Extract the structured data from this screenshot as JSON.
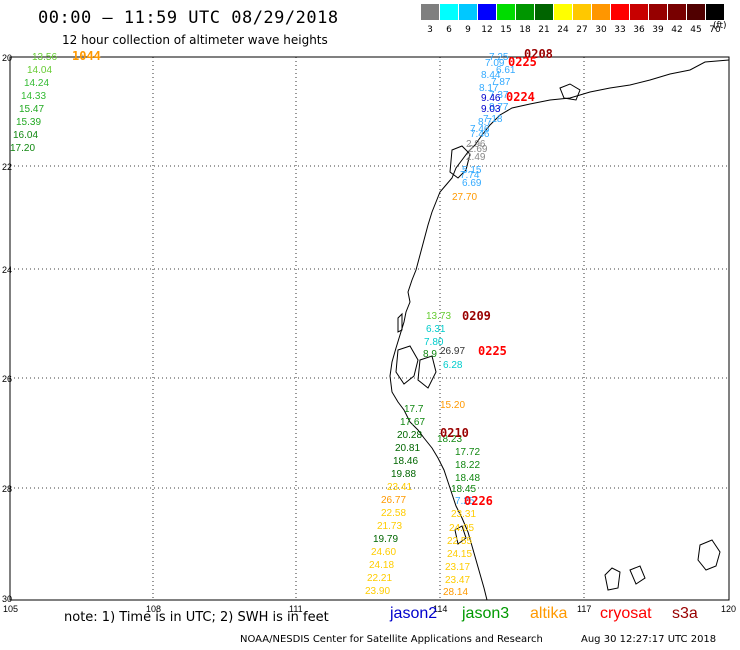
{
  "header": {
    "title": "00:00 — 11:59 UTC 08/29/2018",
    "subtitle": "12 hour collection of altimeter wave heights"
  },
  "scale": {
    "colors": [
      "#7f7f7f",
      "#00ffff",
      "#00c8ff",
      "#0000ff",
      "#00dc00",
      "#009600",
      "#006400",
      "#ffff00",
      "#ffc800",
      "#ff9600",
      "#ff0000",
      "#c80000",
      "#960000",
      "#780000",
      "#500000",
      "#000000"
    ],
    "labels": [
      "3",
      "6",
      "9",
      "12",
      "15",
      "18",
      "21",
      "24",
      "27",
      "30",
      "33",
      "36",
      "39",
      "42",
      "45",
      "70"
    ],
    "unit": "(ft)"
  },
  "axes": {
    "lon_ticks": [
      "105",
      "108",
      "111",
      "114",
      "117",
      "120"
    ],
    "lat_ticks": [
      "20",
      "22",
      "24",
      "26",
      "28",
      "30"
    ]
  },
  "footer": {
    "note": "note: 1) Time is in UTC; 2) SWH is in feet",
    "satellites": [
      {
        "name": "jason2",
        "color": "#0000cc"
      },
      {
        "name": "jason3",
        "color": "#009900"
      },
      {
        "name": "altika",
        "color": "#ff9900"
      },
      {
        "name": "cryosat",
        "color": "#ff0000"
      },
      {
        "name": "s3a",
        "color": "#990000"
      }
    ],
    "credit": "NOAA/NESDIS Center for Satellite Applications and Research",
    "timestamp": "Aug 30 12:27:17 UTC 2018"
  },
  "tracks": {
    "time_labels": [
      {
        "text": "1044",
        "color": "#ff9900"
      },
      {
        "text": "0208",
        "color": "#990000"
      },
      {
        "text": "0225",
        "color": "#ff0000"
      },
      {
        "text": "0224",
        "color": "#ff0000"
      },
      {
        "text": "0209",
        "color": "#990000"
      },
      {
        "text": "0225",
        "color": "#ff0000"
      },
      {
        "text": "0210",
        "color": "#990000"
      },
      {
        "text": "0226",
        "color": "#ff0000"
      }
    ],
    "values": [
      {
        "text": "13.56",
        "color": "#66cc33"
      },
      {
        "text": "14.04",
        "color": "#66cc33"
      },
      {
        "text": "14.24",
        "color": "#33bb33"
      },
      {
        "text": "14.33",
        "color": "#33bb33"
      },
      {
        "text": "15.47",
        "color": "#22aa22"
      },
      {
        "text": "15.39",
        "color": "#22aa22"
      },
      {
        "text": "16.04",
        "color": "#118811"
      },
      {
        "text": "17.20",
        "color": "#118811"
      },
      {
        "text": "7.25",
        "color": "#33aaff"
      },
      {
        "text": "7.09",
        "color": "#33aaff"
      },
      {
        "text": "6.61",
        "color": "#33aaff"
      },
      {
        "text": "8.44",
        "color": "#33aaff"
      },
      {
        "text": "7.87",
        "color": "#33aaff"
      },
      {
        "text": "8.17",
        "color": "#33aaff"
      },
      {
        "text": "7.37",
        "color": "#33aaff"
      },
      {
        "text": "9.46",
        "color": "#0000cc"
      },
      {
        "text": "8.77",
        "color": "#33aaff"
      },
      {
        "text": "9.03",
        "color": "#0000cc"
      },
      {
        "text": "7.18",
        "color": "#33aaff"
      },
      {
        "text": "8.7",
        "color": "#33aaff"
      },
      {
        "text": "7.46",
        "color": "#33aaff"
      },
      {
        "text": "7.46",
        "color": "#33aaff"
      },
      {
        "text": "2.96",
        "color": "#888888"
      },
      {
        "text": "2.69",
        "color": "#888888"
      },
      {
        "text": "2.49",
        "color": "#888888"
      },
      {
        "text": "5.15",
        "color": "#33aaff"
      },
      {
        "text": "7.74",
        "color": "#33aaff"
      },
      {
        "text": "6.69",
        "color": "#33aaff"
      },
      {
        "text": "27.70",
        "color": "#ff9900"
      },
      {
        "text": "13.73",
        "color": "#66cc33"
      },
      {
        "text": "6.31",
        "color": "#00cccc"
      },
      {
        "text": "7.80",
        "color": "#00cccc"
      },
      {
        "text": "8.9",
        "color": "#118811"
      },
      {
        "text": "26.97",
        "color": "#333333"
      },
      {
        "text": "6.28",
        "color": "#00cccc"
      },
      {
        "text": "15.20",
        "color": "#ff9900"
      },
      {
        "text": "17.7",
        "color": "#118811"
      },
      {
        "text": "17.67",
        "color": "#118811"
      },
      {
        "text": "20.28",
        "color": "#006600"
      },
      {
        "text": "18.23",
        "color": "#118811"
      },
      {
        "text": "20.81",
        "color": "#006600"
      },
      {
        "text": "17.72",
        "color": "#118811"
      },
      {
        "text": "18.46",
        "color": "#006600"
      },
      {
        "text": "18.22",
        "color": "#118811"
      },
      {
        "text": "19.88",
        "color": "#006600"
      },
      {
        "text": "18.48",
        "color": "#118811"
      },
      {
        "text": "23.41",
        "color": "#ffcc00"
      },
      {
        "text": "18.45",
        "color": "#118811"
      },
      {
        "text": "26.77",
        "color": "#ff9900"
      },
      {
        "text": "7.25",
        "color": "#33aaff"
      },
      {
        "text": "22.58",
        "color": "#ffcc00"
      },
      {
        "text": "23.31",
        "color": "#ffcc00"
      },
      {
        "text": "21.73",
        "color": "#ffcc00"
      },
      {
        "text": "24.05",
        "color": "#ffcc00"
      },
      {
        "text": "19.79",
        "color": "#006600"
      },
      {
        "text": "22.55",
        "color": "#ffcc00"
      },
      {
        "text": "24.60",
        "color": "#ffcc00"
      },
      {
        "text": "24.15",
        "color": "#ffcc00"
      },
      {
        "text": "24.18",
        "color": "#ffcc00"
      },
      {
        "text": "23.17",
        "color": "#ffcc00"
      },
      {
        "text": "22.21",
        "color": "#ffcc00"
      },
      {
        "text": "23.47",
        "color": "#ffcc00"
      },
      {
        "text": "23.90",
        "color": "#ffcc00"
      },
      {
        "text": "28.14",
        "color": "#ff9900"
      }
    ]
  }
}
